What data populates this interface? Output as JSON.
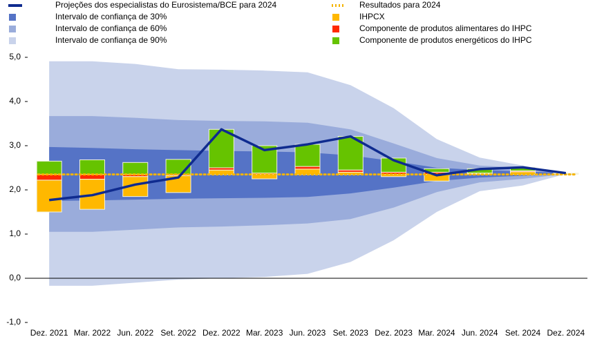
{
  "chart_data": {
    "type": "fan",
    "categories": [
      "Dez. 2021",
      "Mar. 2022",
      "Jun. 2022",
      "Set. 2022",
      "Dez. 2022",
      "Mar. 2023",
      "Jun. 2023",
      "Set. 2023",
      "Dez. 2023",
      "Mar. 2024",
      "Jun. 2024",
      "Set. 2024",
      "Dez. 2024"
    ],
    "ylim": [
      -1,
      5
    ],
    "yticks": [
      {
        "value": 5,
        "label": "5,0"
      },
      {
        "value": 4,
        "label": "4,0"
      },
      {
        "value": 3,
        "label": "3,0"
      },
      {
        "value": 2,
        "label": "2,0"
      },
      {
        "value": 1,
        "label": "1,0"
      },
      {
        "value": 0,
        "label": "0,0"
      },
      {
        "value": -1,
        "label": "-1,0"
      }
    ],
    "line": {
      "name": "Projeções dos especialistas do Eurosistema/BCE para 2024",
      "color": "#0f2b8f",
      "values": [
        1.77,
        1.88,
        2.12,
        2.28,
        3.37,
        2.9,
        3.03,
        3.21,
        2.67,
        2.33,
        2.47,
        2.51,
        2.38
      ]
    },
    "bands": [
      {
        "name": "Intervalo de confiança de 30%",
        "color": "#5573c6",
        "lower": [
          1.75,
          1.76,
          1.78,
          1.8,
          1.81,
          1.82,
          1.84,
          1.92,
          2.05,
          2.2,
          2.28,
          2.32,
          2.36
        ],
        "upper": [
          2.97,
          2.95,
          2.92,
          2.9,
          2.88,
          2.87,
          2.85,
          2.78,
          2.65,
          2.5,
          2.45,
          2.42,
          2.38
        ]
      },
      {
        "name": "Intervalo de confiança de 60%",
        "color": "#9aacdb",
        "lower": [
          1.05,
          1.05,
          1.1,
          1.15,
          1.17,
          1.2,
          1.24,
          1.34,
          1.6,
          1.95,
          2.17,
          2.25,
          2.36
        ],
        "upper": [
          3.67,
          3.67,
          3.63,
          3.58,
          3.56,
          3.55,
          3.52,
          3.37,
          3.05,
          2.72,
          2.55,
          2.5,
          2.38
        ]
      },
      {
        "name": "Intervalo de confiança de 90%",
        "color": "#c9d3eb",
        "lower": [
          -0.17,
          -0.17,
          -0.1,
          -0.03,
          0.0,
          0.03,
          0.1,
          0.37,
          0.86,
          1.5,
          1.97,
          2.1,
          2.36
        ],
        "upper": [
          4.91,
          4.91,
          4.85,
          4.73,
          4.72,
          4.7,
          4.66,
          4.37,
          3.85,
          3.15,
          2.73,
          2.55,
          2.38
        ]
      }
    ],
    "reference": {
      "name": "Resultados para 2024",
      "color": "#f5b400",
      "values": [
        2.35,
        2.35,
        2.35,
        2.35,
        2.35,
        2.35,
        2.35,
        2.35,
        2.35,
        2.35,
        2.35,
        2.35,
        2.35
      ]
    },
    "series": [
      {
        "name": "IHPCX",
        "color": "#ffb800",
        "values": [
          -0.72,
          -0.68,
          -0.45,
          -0.38,
          0.1,
          -0.1,
          0.12,
          0.05,
          -0.05,
          -0.15,
          0.02,
          0.06,
          0.01
        ]
      },
      {
        "name": "Componente de produtos alimentares do IHPC",
        "color": "#ff2a00",
        "values": [
          -0.13,
          -0.11,
          -0.05,
          -0.03,
          0.05,
          0.03,
          0.06,
          0.05,
          0.05,
          0.05,
          0.01,
          0.02,
          0.01
        ]
      },
      {
        "name": "Componente de produtos energéticos do IHPC",
        "color": "#66c300",
        "values": [
          0.3,
          0.33,
          0.27,
          0.34,
          0.87,
          0.62,
          0.5,
          0.76,
          0.32,
          0.08,
          0.1,
          0.08,
          0.01
        ]
      }
    ]
  }
}
